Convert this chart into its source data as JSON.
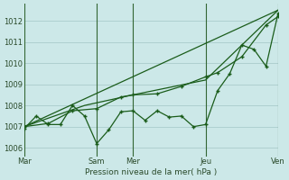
{
  "xlabel": "Pression niveau de la mer( hPa )",
  "bg_color": "#cce8e8",
  "grid_color": "#aacccc",
  "line_color": "#1a5c1a",
  "vline_color": "#336633",
  "ylim": [
    1005.6,
    1012.8
  ],
  "yticks": [
    1006,
    1007,
    1008,
    1009,
    1010,
    1011,
    1012
  ],
  "xtick_labels": [
    "Mar",
    "",
    "Sam",
    "Mer",
    "",
    "Jeu",
    "",
    "Ven"
  ],
  "xtick_positions": [
    0,
    1.5,
    3,
    4.5,
    6,
    7.5,
    9,
    10.5
  ],
  "xlim": [
    0,
    10.5
  ],
  "vlines_x": [
    0,
    3,
    4.5,
    7.5,
    10.5
  ],
  "series1_x": [
    0,
    0.5,
    1.0,
    1.5,
    2.0,
    2.5,
    3.0,
    3.5,
    4.0,
    4.5,
    5.0,
    5.5,
    6.0,
    6.5,
    7.0,
    7.5,
    8.0,
    8.5,
    9.0,
    9.5,
    10.0,
    10.5
  ],
  "series1_y": [
    1006.9,
    1007.5,
    1007.1,
    1007.1,
    1008.0,
    1007.5,
    1006.2,
    1006.85,
    1007.7,
    1007.75,
    1007.3,
    1007.75,
    1007.45,
    1007.5,
    1007.0,
    1007.1,
    1008.7,
    1009.5,
    1010.85,
    1010.65,
    1009.85,
    1012.35
  ],
  "series2_x": [
    0,
    1.0,
    2.0,
    3.0,
    4.0,
    4.5,
    5.5,
    6.5,
    7.5,
    8.0,
    9.0,
    10.0,
    10.5
  ],
  "series2_y": [
    1007.0,
    1007.15,
    1007.75,
    1007.85,
    1008.4,
    1008.5,
    1008.55,
    1008.9,
    1009.35,
    1009.55,
    1010.3,
    1011.8,
    1012.2
  ],
  "series3_x": [
    0,
    2.5,
    4.5,
    7.5,
    10.5
  ],
  "series3_y": [
    1007.0,
    1008.0,
    1008.5,
    1009.2,
    1012.5
  ],
  "series4_x": [
    0,
    10.5
  ],
  "series4_y": [
    1007.0,
    1012.5
  ]
}
